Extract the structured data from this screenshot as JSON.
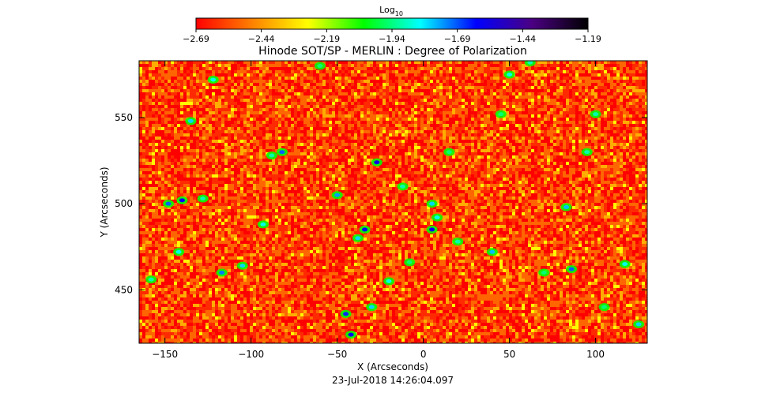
{
  "chart_data": {
    "type": "heatmap",
    "title": "Hinode SOT/SP - MERLIN : Degree of Polarization",
    "xlabel": "X (Arcseconds)",
    "ylabel": "Y (Arcseconds)",
    "xlim": [
      -165,
      130
    ],
    "ylim": [
      419,
      583
    ],
    "x_ticks": [
      -150,
      -100,
      -50,
      0,
      50,
      100
    ],
    "y_ticks": [
      450,
      500,
      550
    ],
    "timestamp": "23-Jul-2018 14:26:04.097",
    "colorbar": {
      "title_base": "Log",
      "title_sub": "10",
      "range": [
        -2.69,
        -1.19
      ],
      "tick_values": [
        -2.69,
        -2.44,
        -2.19,
        -1.94,
        -1.69,
        -1.44,
        -1.19
      ],
      "tick_labels": [
        "−2.69",
        "−2.44",
        "−2.19",
        "−1.94",
        "−1.69",
        "−1.44",
        "−1.19"
      ],
      "colormap": [
        "#ff0000",
        "#ff8000",
        "#ffff00",
        "#00ff00",
        "#00ffff",
        "#0000ff",
        "#4b0082",
        "#000000"
      ]
    },
    "background_log10": -2.62,
    "features": [
      {
        "x": -140,
        "y": 502,
        "log10": -1.62
      },
      {
        "x": -148,
        "y": 500,
        "log10": -1.7
      },
      {
        "x": -128,
        "y": 503,
        "log10": -1.9
      },
      {
        "x": -117,
        "y": 460,
        "log10": -1.72
      },
      {
        "x": -105,
        "y": 464,
        "log10": -1.8
      },
      {
        "x": -93,
        "y": 488,
        "log10": -1.85
      },
      {
        "x": -88,
        "y": 528,
        "log10": -1.9
      },
      {
        "x": -82,
        "y": 530,
        "log10": -1.7
      },
      {
        "x": -50,
        "y": 505,
        "log10": -1.75
      },
      {
        "x": -45,
        "y": 436,
        "log10": -1.65
      },
      {
        "x": -42,
        "y": 424,
        "log10": -1.6
      },
      {
        "x": -38,
        "y": 480,
        "log10": -1.8
      },
      {
        "x": -34,
        "y": 485,
        "log10": -1.62
      },
      {
        "x": -30,
        "y": 440,
        "log10": -1.8
      },
      {
        "x": -27,
        "y": 524,
        "log10": -1.58
      },
      {
        "x": -20,
        "y": 455,
        "log10": -1.85
      },
      {
        "x": -12,
        "y": 510,
        "log10": -1.9
      },
      {
        "x": -8,
        "y": 466,
        "log10": -1.95
      },
      {
        "x": 5,
        "y": 485,
        "log10": -1.58
      },
      {
        "x": 5,
        "y": 500,
        "log10": -1.8
      },
      {
        "x": 8,
        "y": 492,
        "log10": -1.85
      },
      {
        "x": 20,
        "y": 478,
        "log10": -1.9
      },
      {
        "x": 40,
        "y": 472,
        "log10": -1.78
      },
      {
        "x": 45,
        "y": 552,
        "log10": -1.95
      },
      {
        "x": 50,
        "y": 575,
        "log10": -1.85
      },
      {
        "x": 62,
        "y": 582,
        "log10": -1.9
      },
      {
        "x": 70,
        "y": 460,
        "log10": -1.95
      },
      {
        "x": 86,
        "y": 462,
        "log10": -1.7
      },
      {
        "x": 83,
        "y": 498,
        "log10": -1.78
      },
      {
        "x": 100,
        "y": 552,
        "log10": -1.9
      },
      {
        "x": 117,
        "y": 465,
        "log10": -1.85
      },
      {
        "x": 125,
        "y": 430,
        "log10": -1.8
      },
      {
        "x": -158,
        "y": 456,
        "log10": -1.9
      },
      {
        "x": -142,
        "y": 472,
        "log10": -1.85
      },
      {
        "x": -135,
        "y": 548,
        "log10": -1.8
      },
      {
        "x": -122,
        "y": 572,
        "log10": -1.85
      },
      {
        "x": -60,
        "y": 580,
        "log10": -1.95
      },
      {
        "x": 15,
        "y": 530,
        "log10": -1.95
      },
      {
        "x": 95,
        "y": 530,
        "log10": -1.9
      },
      {
        "x": 105,
        "y": 440,
        "log10": -1.95
      }
    ]
  }
}
